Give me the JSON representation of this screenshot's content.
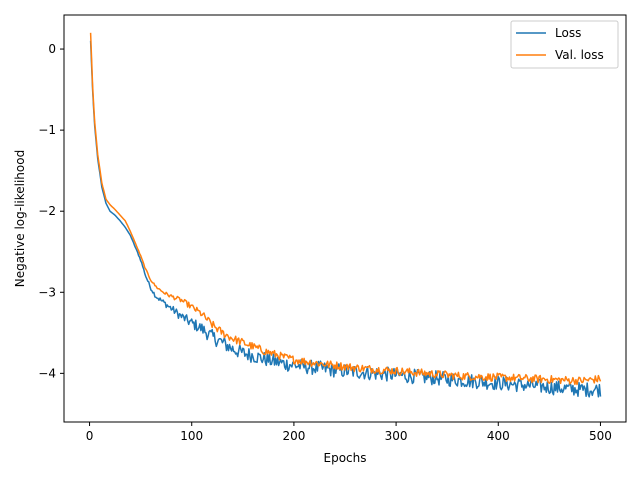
{
  "chart_data": {
    "type": "line",
    "title": "",
    "xlabel": "Epochs",
    "ylabel": "Negative log-likelihood",
    "xlim": [
      -25,
      525
    ],
    "ylim": [
      -4.6,
      0.42
    ],
    "xticks": [
      0,
      100,
      200,
      300,
      400,
      500
    ],
    "yticks": [
      0,
      -1,
      -2,
      -3,
      -4
    ],
    "tick_labels": {
      "x": [
        "0",
        "100",
        "200",
        "300",
        "400",
        "500"
      ],
      "y": [
        "0",
        "−1",
        "−2",
        "−3",
        "−4"
      ]
    },
    "grid": false,
    "legend_position": "top-right",
    "series": [
      {
        "name": "Loss",
        "color": "#1f77b4",
        "noise": 0.09,
        "x": [
          1,
          3,
          5,
          8,
          12,
          16,
          20,
          25,
          30,
          35,
          40,
          45,
          50,
          55,
          60,
          65,
          70,
          75,
          80,
          90,
          100,
          110,
          120,
          130,
          140,
          150,
          160,
          170,
          180,
          190,
          200,
          220,
          240,
          260,
          280,
          300,
          320,
          340,
          360,
          380,
          400,
          420,
          440,
          460,
          480,
          500
        ],
        "y": [
          0.1,
          -0.5,
          -0.95,
          -1.35,
          -1.7,
          -1.9,
          -2.0,
          -2.05,
          -2.12,
          -2.2,
          -2.3,
          -2.45,
          -2.6,
          -2.8,
          -2.95,
          -3.05,
          -3.1,
          -3.15,
          -3.2,
          -3.3,
          -3.38,
          -3.45,
          -3.55,
          -3.62,
          -3.7,
          -3.75,
          -3.78,
          -3.82,
          -3.85,
          -3.88,
          -3.9,
          -3.93,
          -3.96,
          -3.98,
          -4.0,
          -4.02,
          -4.04,
          -4.06,
          -4.08,
          -4.1,
          -4.12,
          -4.14,
          -4.16,
          -4.18,
          -4.2,
          -4.2
        ]
      },
      {
        "name": "Val. loss",
        "color": "#ff7f0e",
        "noise": 0.05,
        "x": [
          1,
          3,
          5,
          8,
          12,
          16,
          20,
          25,
          30,
          35,
          40,
          45,
          50,
          55,
          60,
          65,
          70,
          75,
          80,
          90,
          100,
          110,
          120,
          130,
          140,
          150,
          160,
          170,
          180,
          190,
          200,
          220,
          240,
          260,
          280,
          300,
          320,
          340,
          360,
          380,
          400,
          420,
          440,
          460,
          480,
          500
        ],
        "y": [
          0.2,
          -0.45,
          -0.9,
          -1.3,
          -1.65,
          -1.85,
          -1.92,
          -1.98,
          -2.05,
          -2.12,
          -2.25,
          -2.4,
          -2.55,
          -2.72,
          -2.85,
          -2.93,
          -2.98,
          -3.02,
          -3.05,
          -3.1,
          -3.18,
          -3.27,
          -3.4,
          -3.5,
          -3.57,
          -3.62,
          -3.67,
          -3.72,
          -3.76,
          -3.8,
          -3.83,
          -3.87,
          -3.9,
          -3.93,
          -3.95,
          -3.97,
          -3.99,
          -4.01,
          -4.03,
          -4.04,
          -4.05,
          -4.06,
          -4.07,
          -4.08,
          -4.09,
          -4.07
        ]
      }
    ]
  }
}
